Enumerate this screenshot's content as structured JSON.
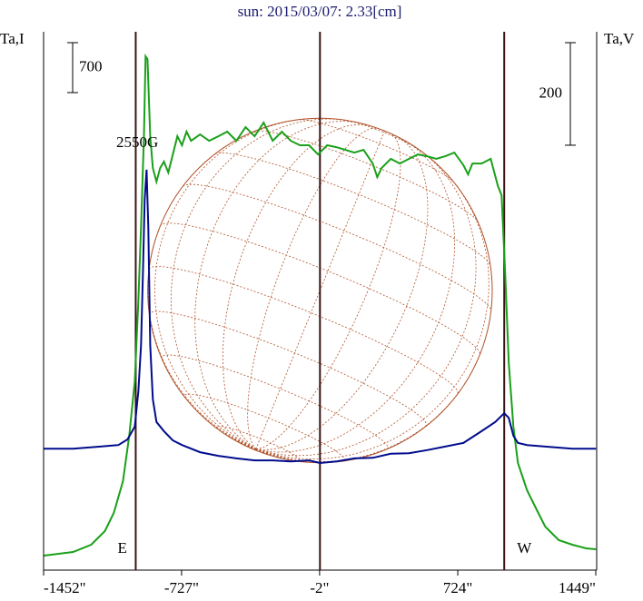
{
  "chart_data": {
    "type": "line",
    "title": "sun: 2015/03/07: 2.33[cm]",
    "ylabel": "Ta,I",
    "y2label": "Ta,V",
    "annotation": "2550G",
    "east_label": "E",
    "west_label": "W",
    "xlim": [
      -1452,
      1449
    ],
    "xticks": [
      {
        "value": -1452,
        "label": "-1452\""
      },
      {
        "value": -727,
        "label": "-727\""
      },
      {
        "value": -2,
        "label": "-2\""
      },
      {
        "value": 724,
        "label": "724\""
      },
      {
        "value": 1449,
        "label": "1449\""
      }
    ],
    "ylim": [
      0,
      7550
    ],
    "y2lim": [
      0,
      1050
    ],
    "y_scale_bar": 700,
    "y2_scale_bar": 200,
    "vlines": [
      -968,
      0,
      968
    ],
    "grid": false,
    "series": [
      {
        "color": "#1aa01a",
        "x": [
          -1450,
          -1297,
          -1202,
          -1130,
          -1083,
          -1035,
          -1002,
          -973,
          -954,
          -940,
          -925,
          -916,
          -906,
          -892,
          -878,
          -859,
          -840,
          -820,
          -797,
          -773,
          -749,
          -725,
          -701,
          -677,
          -630,
          -582,
          -534,
          -487,
          -439,
          -391,
          -343,
          -296,
          -248,
          -200,
          -153,
          -105,
          -57,
          -10,
          38,
          86,
          134,
          181,
          229,
          277,
          301,
          324,
          372,
          420,
          467,
          515,
          563,
          611,
          658,
          706,
          754,
          778,
          801,
          849,
          897,
          935,
          954,
          973,
          992,
          1016,
          1040,
          1088,
          1135,
          1183,
          1255,
          1326,
          1398,
          1450
        ],
        "values": [
          204,
          255,
          356,
          547,
          802,
          1248,
          1884,
          2648,
          3794,
          4812,
          6085,
          7205,
          7167,
          6085,
          5639,
          5448,
          5639,
          5729,
          5576,
          5830,
          6085,
          5958,
          6149,
          6021,
          6110,
          6021,
          6085,
          6149,
          6021,
          6212,
          6085,
          6276,
          6021,
          6149,
          6021,
          5958,
          5958,
          5830,
          5958,
          5932,
          5894,
          5856,
          5894,
          5703,
          5512,
          5639,
          5767,
          5703,
          5767,
          5830,
          5805,
          5767,
          5805,
          5856,
          5678,
          5550,
          5703,
          5703,
          5767,
          5385,
          5257,
          4175,
          2902,
          2011,
          1502,
          1120,
          866,
          611,
          420,
          356,
          306,
          293
        ]
      },
      {
        "color": "#000c8c",
        "axis": "y2",
        "x": [
          -1450,
          -1297,
          -1154,
          -1059,
          -1011,
          -973,
          -954,
          -940,
          -930,
          -921,
          -911,
          -902,
          -892,
          -878,
          -859,
          -820,
          -773,
          -725,
          -630,
          -534,
          -439,
          -343,
          -248,
          -153,
          -57,
          0,
          86,
          181,
          277,
          372,
          467,
          563,
          658,
          754,
          849,
          921,
          968,
          992,
          1016,
          1040,
          1088,
          1183,
          1326,
          1450
        ],
        "values": [
          237,
          237,
          241,
          244,
          255,
          280,
          350,
          439,
          581,
          722,
          781,
          669,
          439,
          333,
          289,
          271,
          253,
          244,
          230,
          223,
          218,
          214,
          214,
          212,
          214,
          209,
          212,
          218,
          219,
          227,
          228,
          234,
          241,
          248,
          271,
          289,
          306,
          297,
          262,
          248,
          244,
          241,
          237,
          237
        ]
      }
    ]
  }
}
